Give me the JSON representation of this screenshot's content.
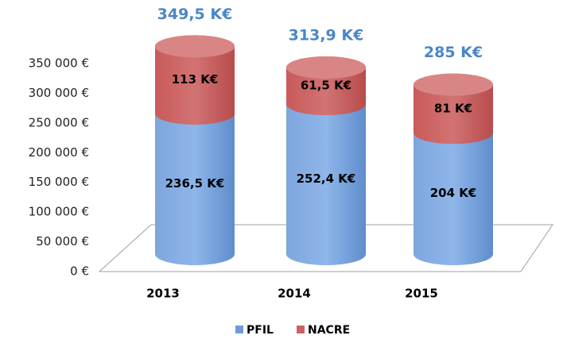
{
  "chart_data": {
    "type": "stacked_cylinder",
    "categories": [
      "2013",
      "2014",
      "2015"
    ],
    "series": [
      {
        "name": "PFIL",
        "color": "#6f9bd6",
        "values": [
          236500,
          252400,
          204000
        ],
        "value_labels": [
          "236,5 K€",
          "252,4 K€",
          "204 K€"
        ]
      },
      {
        "name": "NACRE",
        "color": "#cc6262",
        "values": [
          113000,
          61500,
          81000
        ],
        "value_labels": [
          "113 K€",
          "61,5 K€",
          "81 K€"
        ]
      }
    ],
    "totals": {
      "color": "#4a86c8",
      "values": [
        349500,
        313900,
        285000
      ],
      "value_labels": [
        "349,5 K€",
        "313,9 K€",
        "285 K€"
      ]
    },
    "ylim": [
      0,
      350000
    ],
    "yticks": [
      {
        "value": 0,
        "label": "0 €"
      },
      {
        "value": 50000,
        "label": "50 000 €"
      },
      {
        "value": 100000,
        "label": "100 000 €"
      },
      {
        "value": 150000,
        "label": "150 000 €"
      },
      {
        "value": 200000,
        "label": "200 000 €"
      },
      {
        "value": 250000,
        "label": "250 000 €"
      },
      {
        "value": 300000,
        "label": "300 000 €"
      },
      {
        "value": 350000,
        "label": "350 000 €"
      }
    ],
    "legend": "bottom"
  }
}
